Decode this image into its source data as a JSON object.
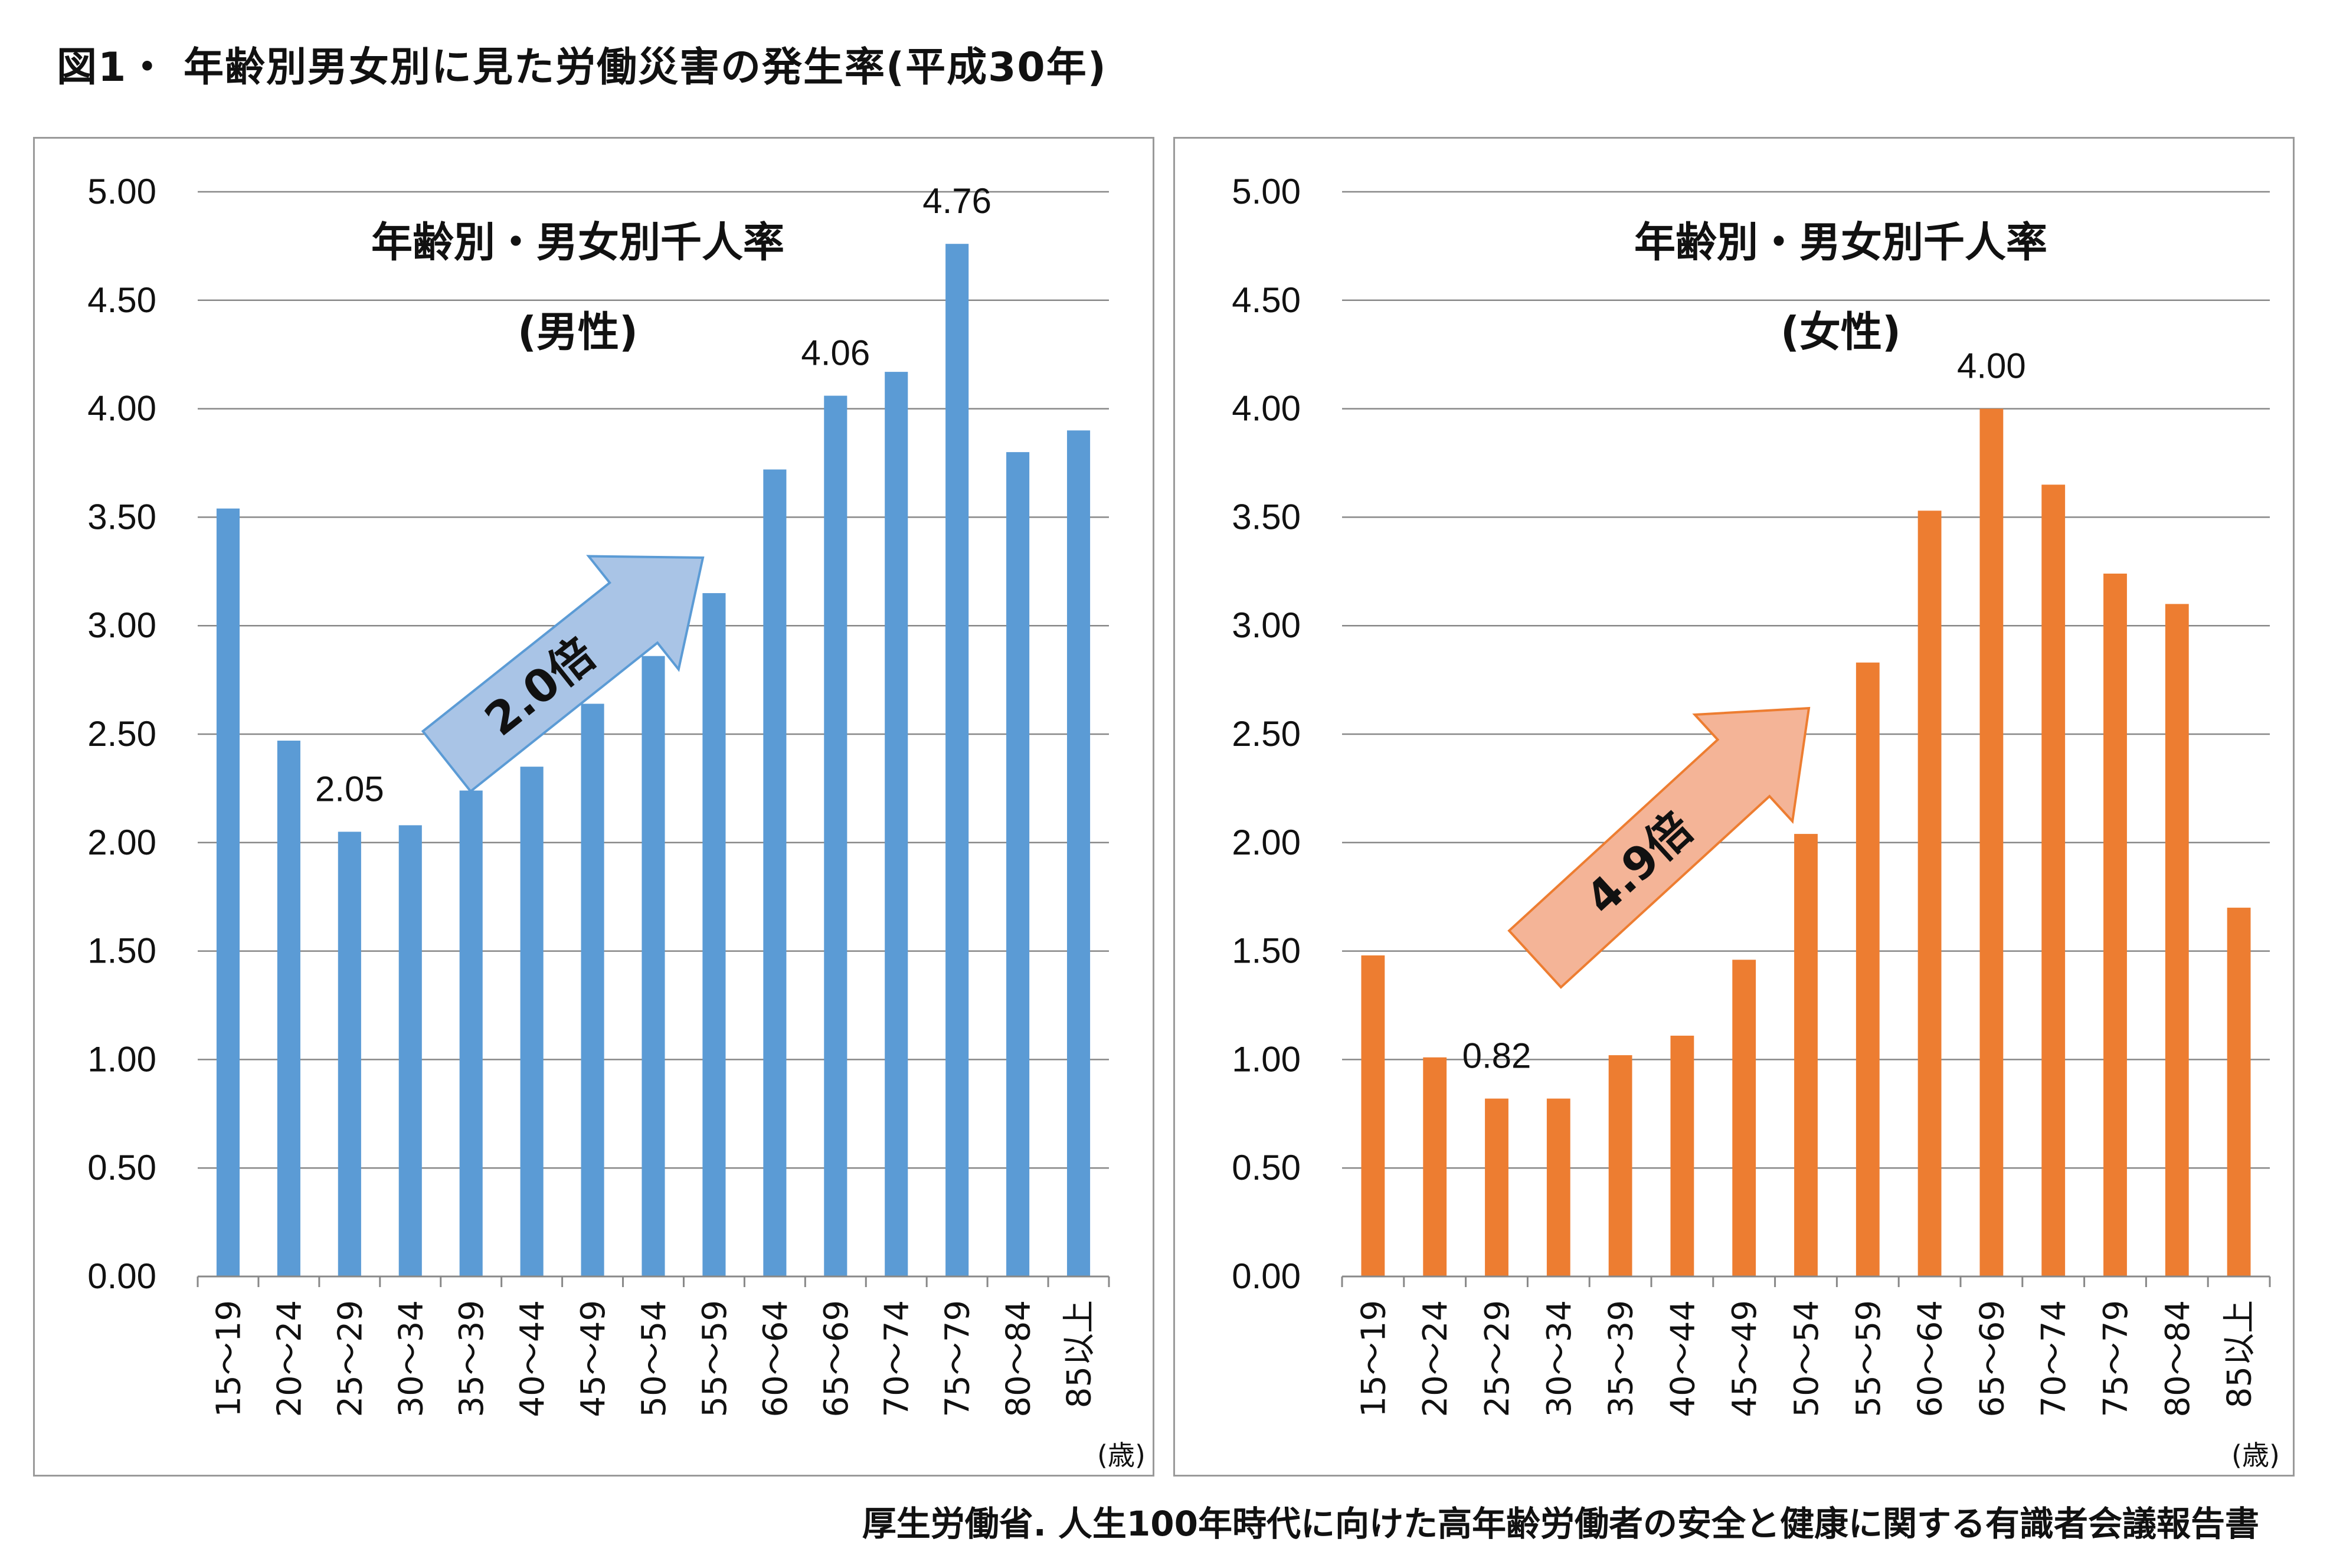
{
  "figure_title": "図1・ 年齢別男女別に見た労働災害の発生率(平成30年)",
  "source": "厚生労働省.  人生100年時代に向けた高年齢労働者の安全と健康に関する有識者会議報告書",
  "colors": {
    "male": "#5b9bd5",
    "female": "#ed7d31",
    "grid": "#888888",
    "axis": "#888888"
  },
  "panels": [
    {
      "title": "年齢別・男女別千人率",
      "subtitle": "(男性)",
      "arrow_label": "2.0倍",
      "unit": "(歳)"
    },
    {
      "title": "年齢別・男女別千人率",
      "subtitle": "(女性)",
      "arrow_label": "4.9倍",
      "unit": "(歳)"
    }
  ],
  "chart_data": [
    {
      "type": "bar",
      "title": "年齢別・男女別千人率",
      "subtitle": "(男性)",
      "xlabel": "(歳)",
      "ylim": [
        0,
        5
      ],
      "yticks": [
        "0.00",
        "0.50",
        "1.00",
        "1.50",
        "2.00",
        "2.50",
        "3.00",
        "3.50",
        "4.00",
        "4.50",
        "5.00"
      ],
      "grid": true,
      "categories": [
        "15～19",
        "20～24",
        "25～29",
        "30～34",
        "35～39",
        "40～44",
        "45～49",
        "50～54",
        "55～59",
        "60～64",
        "65～69",
        "70～74",
        "75～79",
        "80～84",
        "85以上"
      ],
      "values": [
        3.54,
        2.47,
        2.05,
        2.08,
        2.24,
        2.35,
        2.64,
        2.86,
        3.15,
        3.72,
        4.06,
        4.17,
        4.76,
        3.8,
        3.9
      ],
      "data_labels": [
        {
          "index": 2,
          "text": "2.05"
        },
        {
          "index": 10,
          "text": "4.06"
        },
        {
          "index": 12,
          "text": "4.76"
        }
      ],
      "annotation": "2.0倍"
    },
    {
      "type": "bar",
      "title": "年齢別・男女別千人率",
      "subtitle": "(女性)",
      "xlabel": "(歳)",
      "ylim": [
        0,
        5
      ],
      "yticks": [
        "0.00",
        "0.50",
        "1.00",
        "1.50",
        "2.00",
        "2.50",
        "3.00",
        "3.50",
        "4.00",
        "4.50",
        "5.00"
      ],
      "grid": true,
      "categories": [
        "15～19",
        "20～24",
        "25～29",
        "30～34",
        "35～39",
        "40～44",
        "45～49",
        "50～54",
        "55～59",
        "60～64",
        "65～69",
        "70～74",
        "75～79",
        "80～84",
        "85以上"
      ],
      "values": [
        1.48,
        1.01,
        0.82,
        0.82,
        1.02,
        1.11,
        1.46,
        2.04,
        2.83,
        3.53,
        4.0,
        3.65,
        3.24,
        3.1,
        1.7
      ],
      "data_labels": [
        {
          "index": 2,
          "text": "0.82"
        },
        {
          "index": 10,
          "text": "4.00"
        }
      ],
      "annotation": "4.9倍"
    }
  ]
}
